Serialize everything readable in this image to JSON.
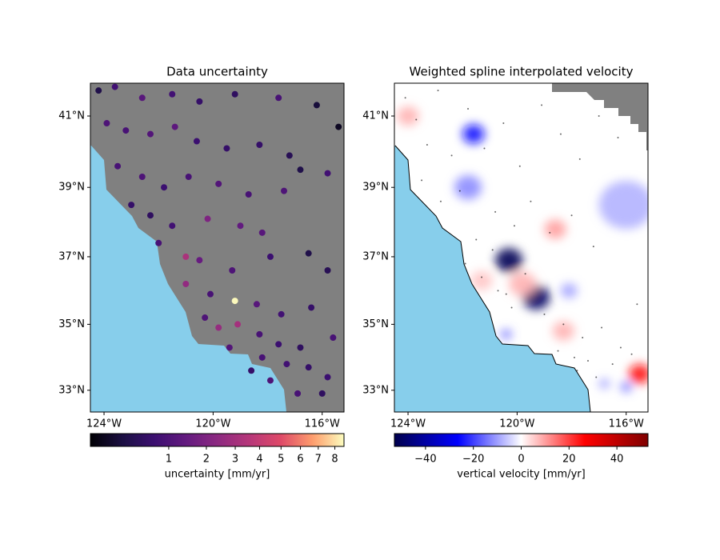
{
  "chart_data": [
    {
      "type": "scatter",
      "title": "Data uncertainty",
      "xlim": [
        -124.5,
        -115.2
      ],
      "ylim": [
        32.33,
        41.9
      ],
      "xticks": [
        {
          "value": -124,
          "label": "124°W"
        },
        {
          "value": -120,
          "label": "120°W"
        },
        {
          "value": -116,
          "label": "116°W"
        }
      ],
      "yticks": [
        {
          "value": 33,
          "label": "33°N"
        },
        {
          "value": 35,
          "label": "35°N"
        },
        {
          "value": 37,
          "label": "37°N"
        },
        {
          "value": 39,
          "label": "39°N"
        },
        {
          "value": 41,
          "label": "41°N"
        }
      ],
      "x": [
        -124.2,
        -123.6,
        -122.6,
        -121.5,
        -120.5,
        -119.2,
        -117.6,
        -116.2,
        -115.4,
        -123.9,
        -123.2,
        -122.3,
        -121.4,
        -120.6,
        -119.5,
        -118.3,
        -117.2,
        -116.8,
        -115.8,
        -123.5,
        -122.6,
        -121.8,
        -120.9,
        -119.8,
        -118.7,
        -117.4,
        -123.0,
        -122.3,
        -121.5,
        -120.2,
        -119.0,
        -118.2,
        -122.0,
        -121.0,
        -120.5,
        -119.3,
        -117.9,
        -116.5,
        -115.8,
        -121.0,
        -120.1,
        -119.2,
        -118.4,
        -117.5,
        -116.4,
        -120.3,
        -119.8,
        -119.1,
        -118.3,
        -117.6,
        -116.8,
        -115.6,
        -119.4,
        -118.2,
        -117.3,
        -116.5,
        -115.8,
        -117.9,
        -116.9,
        -116.0,
        -118.6
      ],
      "y": [
        41.7,
        41.8,
        41.5,
        41.6,
        41.4,
        41.6,
        41.5,
        41.3,
        40.7,
        40.8,
        40.6,
        40.5,
        40.7,
        40.3,
        40.1,
        40.2,
        39.9,
        39.5,
        39.4,
        39.6,
        39.3,
        39.0,
        39.3,
        39.1,
        38.8,
        38.9,
        38.5,
        38.2,
        37.9,
        38.1,
        37.9,
        37.7,
        37.4,
        37.0,
        36.9,
        36.6,
        37.0,
        37.1,
        36.6,
        36.2,
        35.9,
        35.7,
        35.6,
        35.3,
        35.5,
        35.2,
        34.9,
        35.0,
        34.7,
        34.4,
        34.3,
        34.6,
        34.3,
        34.0,
        33.8,
        33.7,
        33.4,
        33.3,
        32.9,
        32.9,
        33.6
      ],
      "values": [
        0.3,
        0.8,
        1.2,
        0.8,
        0.6,
        0.5,
        0.9,
        0.2,
        0.1,
        1.0,
        0.9,
        1.1,
        1.3,
        0.7,
        0.6,
        0.6,
        0.4,
        0.3,
        0.8,
        0.9,
        1.0,
        0.7,
        0.9,
        1.1,
        0.9,
        1.0,
        0.6,
        0.5,
        0.8,
        2.0,
        1.4,
        1.2,
        0.9,
        3.2,
        1.5,
        1.0,
        0.7,
        0.3,
        0.4,
        2.5,
        0.9,
        8.5,
        1.2,
        0.8,
        0.6,
        1.0,
        2.6,
        3.0,
        0.9,
        0.7,
        0.5,
        0.9,
        1.1,
        0.9,
        0.8,
        0.6,
        0.7,
        1.0,
        0.9,
        0.5,
        0.6
      ],
      "colormap": "magma",
      "colorbar": {
        "label": "uncertainty [mm/yr]",
        "norm": "sqrt",
        "clim": [
          0.019,
          8.58
        ],
        "ticks": [
          1,
          2,
          3,
          4,
          5,
          6,
          7,
          8
        ]
      }
    },
    {
      "type": "heatmap",
      "title": "Weighted spline interpolated velocity",
      "xlim": [
        -124.5,
        -115.2
      ],
      "ylim": [
        32.33,
        41.9
      ],
      "xticks": [
        {
          "value": -124,
          "label": "124°W"
        },
        {
          "value": -120,
          "label": "120°W"
        },
        {
          "value": -116,
          "label": "116°W"
        }
      ],
      "yticks": [
        {
          "value": 33,
          "label": "33°N"
        },
        {
          "value": 35,
          "label": "35°N"
        },
        {
          "value": 37,
          "label": "37°N"
        },
        {
          "value": 39,
          "label": "39°N"
        },
        {
          "value": 41,
          "label": "41°N"
        }
      ],
      "x": [
        -120.3,
        -119.3,
        -121.6,
        -121.8,
        -124.0,
        -118.6,
        -119.8,
        -118.1,
        -115.5,
        -116.0,
        -116.8,
        -116.0,
        -121.3,
        -120.4,
        -118.3
      ],
      "y": [
        36.9,
        35.8,
        40.5,
        39.0,
        41.0,
        37.8,
        36.2,
        36.0,
        33.5,
        33.1,
        33.2,
        38.5,
        36.3,
        34.7,
        34.8
      ],
      "values": [
        -52,
        -50,
        -25,
        -12,
        8,
        10,
        8,
        -10,
        25,
        -15,
        -10,
        -8,
        6,
        -15,
        8
      ],
      "sizes": [
        0.5,
        0.5,
        0.4,
        0.5,
        0.4,
        0.4,
        0.5,
        0.3,
        0.4,
        0.2,
        0.2,
        1.0,
        0.4,
        0.2,
        0.4
      ],
      "points": {
        "x": [
          -124.1,
          -123.7,
          -123.3,
          -122.9,
          -122.4,
          -121.8,
          -121.2,
          -120.5,
          -119.9,
          -119.1,
          -118.4,
          -117.7,
          -117.0,
          -116.3,
          -123.5,
          -122.8,
          -122.1,
          -121.5,
          -120.8,
          -120.1,
          -119.5,
          -118.8,
          -118.0,
          -117.2,
          -121.9,
          -121.3,
          -120.7,
          -120.4,
          -119.7,
          -119.0,
          -118.3,
          -117.6,
          -116.9,
          -116.2,
          -115.6,
          -118.5,
          -117.9,
          -117.4,
          -117.8,
          -117.1,
          -116.5,
          -115.8,
          -120.9,
          -120.2
        ],
        "y": [
          41.5,
          40.9,
          40.2,
          41.7,
          39.9,
          41.2,
          40.1,
          40.8,
          39.6,
          41.3,
          40.5,
          39.8,
          41.0,
          40.4,
          39.2,
          38.6,
          38.9,
          37.5,
          38.3,
          37.9,
          38.6,
          37.7,
          38.2,
          37.3,
          36.8,
          36.4,
          36.0,
          35.9,
          36.5,
          35.3,
          35.0,
          34.6,
          34.9,
          34.3,
          35.6,
          34.2,
          34.0,
          33.9,
          33.6,
          33.4,
          33.8,
          34.1,
          37.2,
          35.5
        ]
      },
      "colormap": "seismic",
      "colorbar": {
        "label": "vertical velocity [mm/yr]",
        "norm": "linear",
        "clim": [
          -53,
          53
        ],
        "ticks": [
          {
            "value": -40,
            "label": "−40"
          },
          {
            "value": -20,
            "label": "−20"
          },
          0,
          20,
          40
        ]
      }
    }
  ]
}
